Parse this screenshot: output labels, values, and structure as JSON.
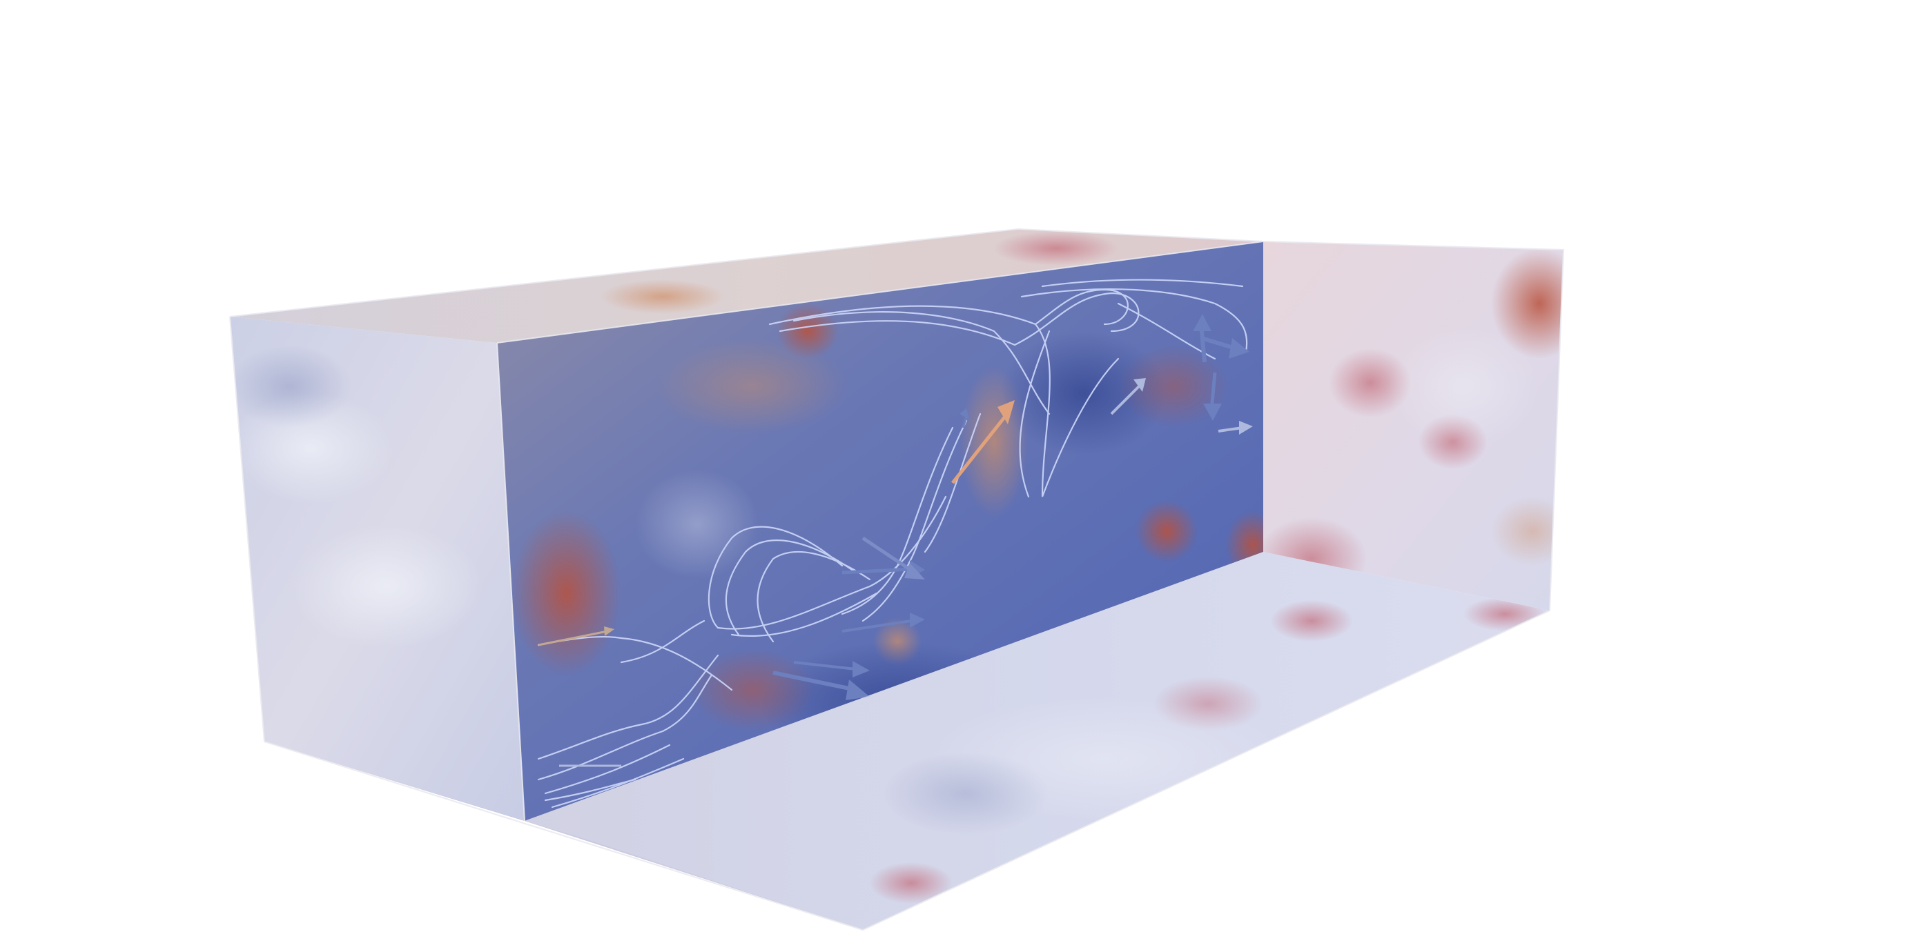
{
  "scene": {
    "kind": "3d-flow-field-render",
    "background_color": "#ffffff",
    "box_face_tint": "#c9cfe4",
    "slice_base_color": "#5b6fb6",
    "streamline_color": "#c7d2f5",
    "hot_color": "#b04a3a",
    "cold_color": "#3a4f9a",
    "arrow_colors": [
      "#6c7fbf",
      "#e0a27c",
      "#aeb9de"
    ],
    "visible_text": []
  }
}
